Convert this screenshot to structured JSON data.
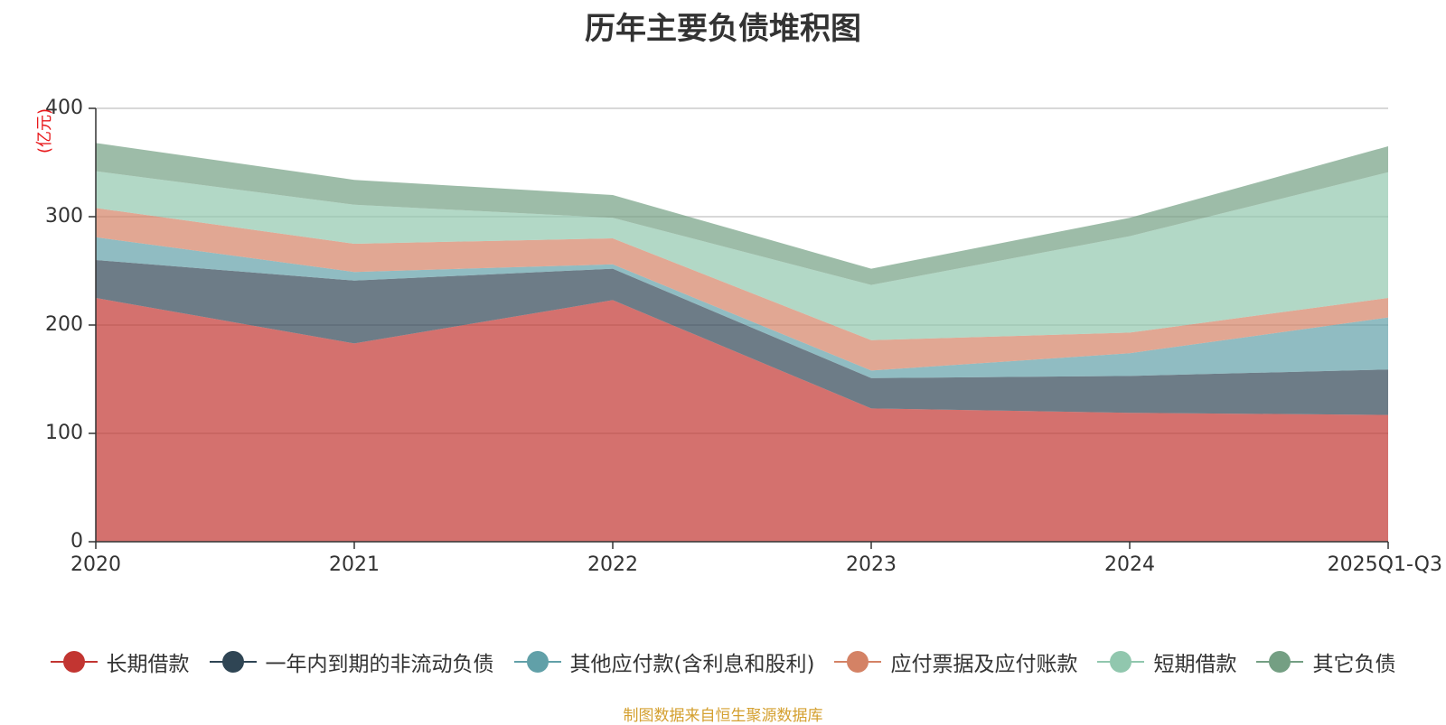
{
  "chart_data": {
    "type": "area",
    "stacked": true,
    "title": "历年主要负债堆积图",
    "unit_label": "(亿元)",
    "categories": [
      "2020",
      "2021",
      "2022",
      "2023",
      "2024",
      "2025Q1-Q3"
    ],
    "ylim": [
      0,
      400
    ],
    "yticks": [
      0,
      100,
      200,
      300,
      400
    ],
    "grid": true,
    "legend_position": "bottom",
    "series": [
      {
        "name": "长期借款",
        "color": "#c23531",
        "values": [
          225,
          183,
          223,
          123,
          119,
          117
        ]
      },
      {
        "name": "一年内到期的非流动负债",
        "color": "#2f4554",
        "values": [
          35,
          58,
          29,
          28,
          34,
          42
        ]
      },
      {
        "name": "其他应付款(含利息和股利)",
        "color": "#61a0a8",
        "values": [
          21,
          8,
          4,
          7,
          21,
          48
        ]
      },
      {
        "name": "应付票据及应付账款",
        "color": "#d48265",
        "values": [
          27,
          26,
          24,
          28,
          19,
          18
        ]
      },
      {
        "name": "短期借款",
        "color": "#91c7ae",
        "values": [
          34,
          36,
          19,
          51,
          89,
          116
        ]
      },
      {
        "name": "其它负债",
        "color": "#749f83",
        "values": [
          26,
          23,
          21,
          15,
          17,
          24
        ]
      }
    ]
  },
  "footer": {
    "source_note": "制图数据来自恒生聚源数据库"
  }
}
